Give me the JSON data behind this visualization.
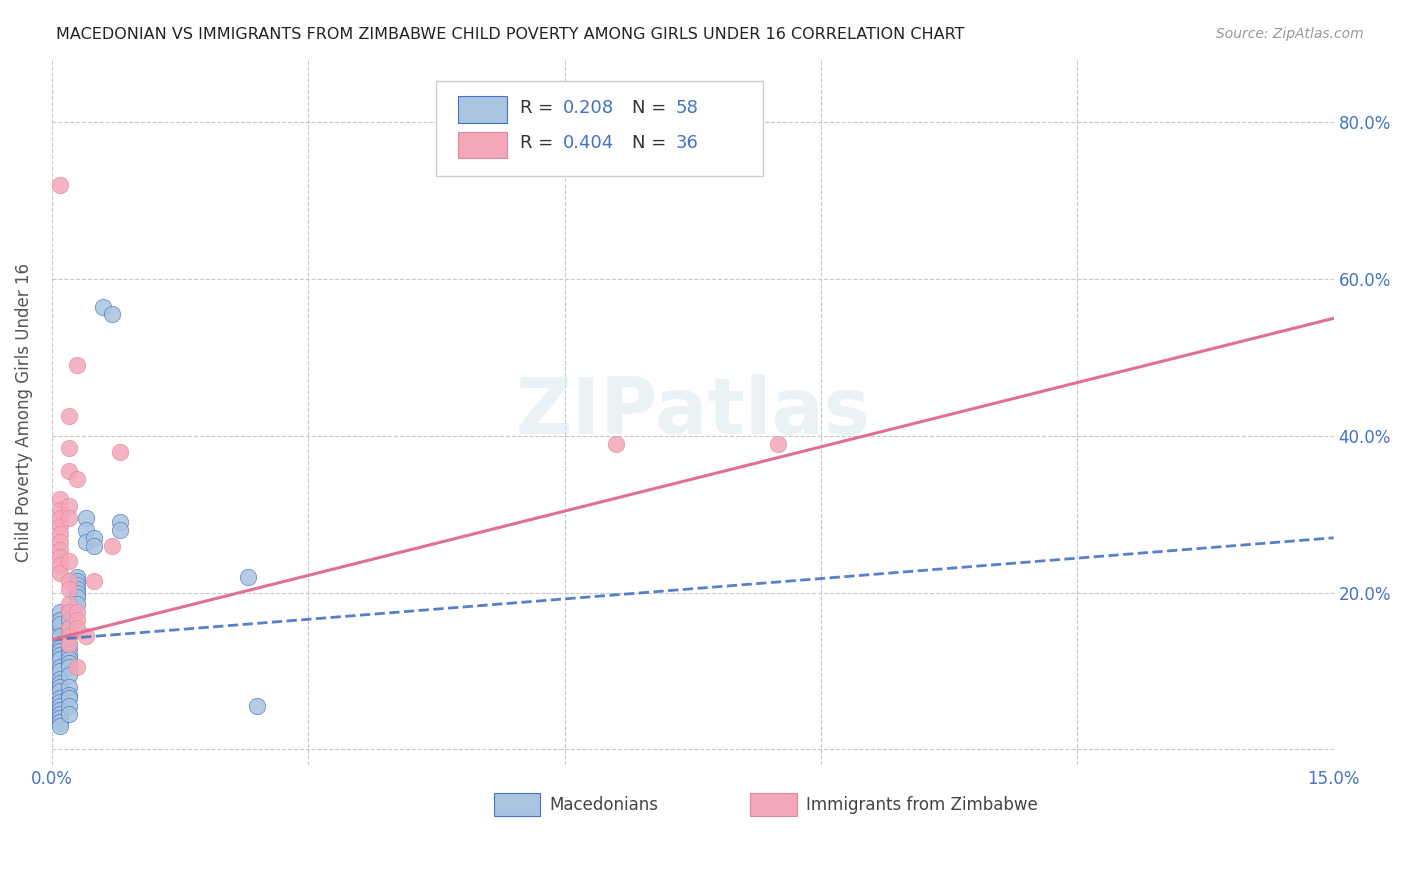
{
  "title": "MACEDONIAN VS IMMIGRANTS FROM ZIMBABWE CHILD POVERTY AMONG GIRLS UNDER 16 CORRELATION CHART",
  "source": "Source: ZipAtlas.com",
  "ylabel": "Child Poverty Among Girls Under 16",
  "xlim": [
    0.0,
    0.15
  ],
  "ylim": [
    -0.02,
    0.88
  ],
  "macedonian_color": "#a8c4e0",
  "zimbabwe_color": "#f4a7b9",
  "macedonian_line_color": "#4472c4",
  "zimbabwe_line_color": "#e07090",
  "R_mac": 0.208,
  "N_mac": 58,
  "R_zim": 0.404,
  "N_zim": 36,
  "watermark": "ZIPatlas",
  "background_color": "#ffffff",
  "grid_color": "#c8c8c8",
  "macedonians_scatter": [
    [
      0.001,
      0.155
    ],
    [
      0.001,
      0.175
    ],
    [
      0.001,
      0.165
    ],
    [
      0.001,
      0.16
    ],
    [
      0.001,
      0.145
    ],
    [
      0.001,
      0.135
    ],
    [
      0.001,
      0.13
    ],
    [
      0.001,
      0.125
    ],
    [
      0.001,
      0.12
    ],
    [
      0.001,
      0.115
    ],
    [
      0.001,
      0.105
    ],
    [
      0.001,
      0.1
    ],
    [
      0.001,
      0.09
    ],
    [
      0.001,
      0.085
    ],
    [
      0.001,
      0.08
    ],
    [
      0.001,
      0.075
    ],
    [
      0.001,
      0.065
    ],
    [
      0.001,
      0.06
    ],
    [
      0.001,
      0.055
    ],
    [
      0.001,
      0.05
    ],
    [
      0.001,
      0.045
    ],
    [
      0.001,
      0.04
    ],
    [
      0.001,
      0.035
    ],
    [
      0.001,
      0.03
    ],
    [
      0.002,
      0.175
    ],
    [
      0.002,
      0.165
    ],
    [
      0.002,
      0.155
    ],
    [
      0.002,
      0.145
    ],
    [
      0.002,
      0.135
    ],
    [
      0.002,
      0.13
    ],
    [
      0.002,
      0.12
    ],
    [
      0.002,
      0.115
    ],
    [
      0.002,
      0.11
    ],
    [
      0.002,
      0.105
    ],
    [
      0.002,
      0.095
    ],
    [
      0.002,
      0.08
    ],
    [
      0.002,
      0.07
    ],
    [
      0.002,
      0.065
    ],
    [
      0.002,
      0.055
    ],
    [
      0.002,
      0.045
    ],
    [
      0.003,
      0.22
    ],
    [
      0.003,
      0.215
    ],
    [
      0.003,
      0.21
    ],
    [
      0.003,
      0.205
    ],
    [
      0.003,
      0.2
    ],
    [
      0.003,
      0.195
    ],
    [
      0.003,
      0.185
    ],
    [
      0.004,
      0.295
    ],
    [
      0.004,
      0.28
    ],
    [
      0.004,
      0.265
    ],
    [
      0.005,
      0.27
    ],
    [
      0.005,
      0.26
    ],
    [
      0.006,
      0.565
    ],
    [
      0.007,
      0.555
    ],
    [
      0.008,
      0.29
    ],
    [
      0.008,
      0.28
    ],
    [
      0.023,
      0.22
    ],
    [
      0.024,
      0.055
    ]
  ],
  "zimbabwe_scatter": [
    [
      0.001,
      0.72
    ],
    [
      0.001,
      0.32
    ],
    [
      0.001,
      0.305
    ],
    [
      0.001,
      0.295
    ],
    [
      0.001,
      0.285
    ],
    [
      0.001,
      0.275
    ],
    [
      0.001,
      0.265
    ],
    [
      0.001,
      0.255
    ],
    [
      0.001,
      0.245
    ],
    [
      0.001,
      0.235
    ],
    [
      0.001,
      0.225
    ],
    [
      0.002,
      0.425
    ],
    [
      0.002,
      0.385
    ],
    [
      0.002,
      0.355
    ],
    [
      0.002,
      0.31
    ],
    [
      0.002,
      0.295
    ],
    [
      0.002,
      0.24
    ],
    [
      0.002,
      0.215
    ],
    [
      0.002,
      0.205
    ],
    [
      0.002,
      0.185
    ],
    [
      0.002,
      0.175
    ],
    [
      0.002,
      0.155
    ],
    [
      0.002,
      0.145
    ],
    [
      0.002,
      0.135
    ],
    [
      0.003,
      0.49
    ],
    [
      0.003,
      0.345
    ],
    [
      0.003,
      0.175
    ],
    [
      0.003,
      0.165
    ],
    [
      0.003,
      0.155
    ],
    [
      0.003,
      0.105
    ],
    [
      0.004,
      0.145
    ],
    [
      0.005,
      0.215
    ],
    [
      0.007,
      0.26
    ],
    [
      0.008,
      0.38
    ],
    [
      0.066,
      0.39
    ],
    [
      0.085,
      0.39
    ]
  ],
  "mac_trend": [
    0.14,
    0.27
  ],
  "zim_trend": [
    0.14,
    0.55
  ]
}
